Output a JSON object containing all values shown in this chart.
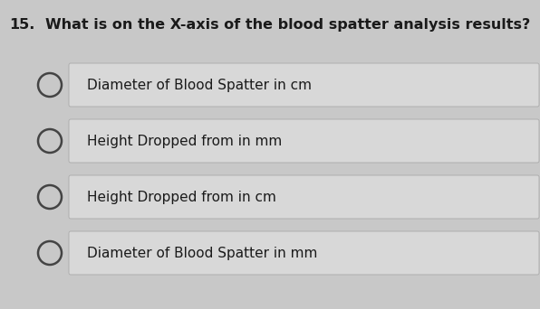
{
  "question_number": "15.",
  "question_text": "What is on the X-axis of the blood spatter analysis results?",
  "options": [
    "Diameter of Blood Spatter in cm",
    "Height Dropped from in mm",
    "Height Dropped from in cm",
    "Diameter of Blood Spatter in mm"
  ],
  "background_color": "#c8c8c8",
  "box_color": "#d8d8d8",
  "box_border_color": "#aaaaaa",
  "text_color": "#1a1a1a",
  "question_fontsize": 11.5,
  "option_fontsize": 11,
  "circle_edge_color": "#444444",
  "circle_linewidth": 1.8
}
